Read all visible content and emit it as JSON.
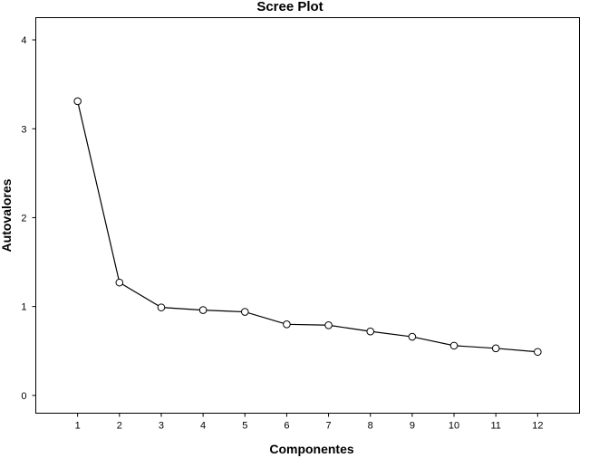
{
  "chart_data": {
    "type": "line",
    "title": "Scree Plot",
    "xlabel": "Componentes",
    "ylabel": "Autovalores",
    "x": [
      1,
      2,
      3,
      4,
      5,
      6,
      7,
      8,
      9,
      10,
      11,
      12
    ],
    "x_tick_labels": [
      "1",
      "2",
      "3",
      "4",
      "5",
      "6",
      "7",
      "8",
      "9",
      "10",
      "11",
      "12"
    ],
    "y_tick_labels": [
      "0",
      "1",
      "2",
      "3",
      "4"
    ],
    "y_ticks": [
      0,
      1,
      2,
      3,
      4
    ],
    "xlim": [
      0,
      13
    ],
    "ylim": [
      -0.2,
      4.25
    ],
    "grid": false,
    "series": [
      {
        "values": [
          3.31,
          1.27,
          0.99,
          0.96,
          0.94,
          0.8,
          0.79,
          0.72,
          0.66,
          0.56,
          0.53,
          0.49
        ]
      }
    ],
    "colors": {
      "line": "#000000",
      "marker_fill": "#ffffff",
      "background": "#ffffff"
    }
  }
}
